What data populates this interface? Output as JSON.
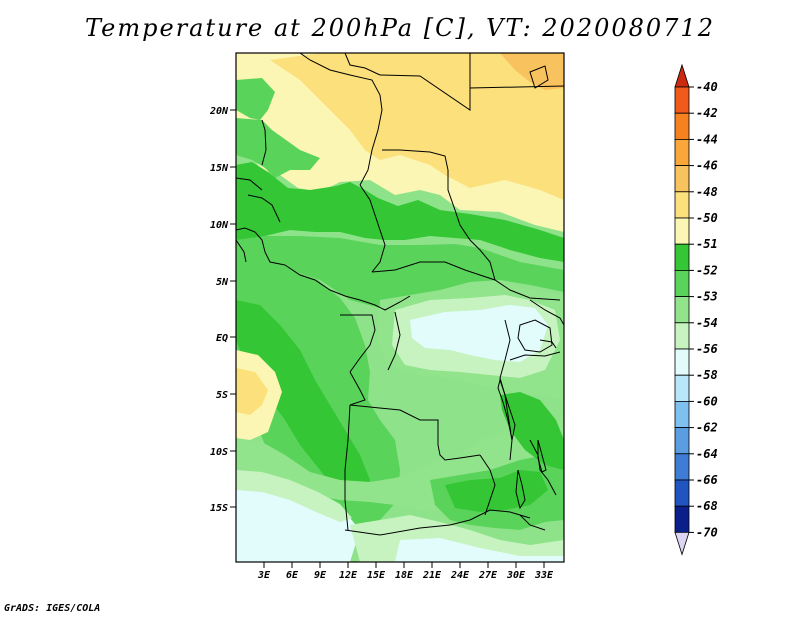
{
  "title": "Temperature at 200hPa [C], VT: 2020080712",
  "credit": "GrADS: IGES/COLA",
  "colors": {
    "palette": [
      "#ffffff",
      "#f8f6c0",
      "#fdeda0",
      "#fbdc80",
      "#f6c872",
      "#f3b262"
    ],
    "greens": [
      "#3cc83c",
      "#5ad25a",
      "#8ee38a",
      "#bff0b8"
    ],
    "cool": [
      "#e2fcfc",
      "#d0f4ff"
    ]
  },
  "map": {
    "lat_labels": [
      "20N",
      "15N",
      "10N",
      "5N",
      "EQ",
      "5S",
      "10S",
      "15S"
    ],
    "lon_labels": [
      "3E",
      "6E",
      "9E",
      "12E",
      "15E",
      "18E",
      "21E",
      "24E",
      "27E",
      "30E",
      "33E"
    ]
  },
  "legend": {
    "levels": [
      {
        "label": "-40",
        "color": "#e03418"
      },
      {
        "label": "-42",
        "color": "#f05a1a"
      },
      {
        "label": "-44",
        "color": "#f7801f"
      },
      {
        "label": "-46",
        "color": "#f9a63a"
      },
      {
        "label": "-48",
        "color": "#f8c25e"
      },
      {
        "label": "-50",
        "color": "#fbe07c"
      },
      {
        "label": "-51",
        "color": "#fbf6b4"
      },
      {
        "label": "-52",
        "color": "#34c634"
      },
      {
        "label": "-53",
        "color": "#5ad35a"
      },
      {
        "label": "-54",
        "color": "#92e48c"
      },
      {
        "label": "-56",
        "color": "#c6f3c0"
      },
      {
        "label": "-58",
        "color": "#e2fcfc"
      },
      {
        "label": "-60",
        "color": "#b8e6fb"
      },
      {
        "label": "-62",
        "color": "#7ec0ef"
      },
      {
        "label": "-64",
        "color": "#5a9de0"
      },
      {
        "label": "-66",
        "color": "#3e7cd6"
      },
      {
        "label": "-68",
        "color": "#2054c0"
      },
      {
        "label": "-70",
        "color": "#0a1f8a"
      }
    ],
    "top_cap_color": "#cc2a10",
    "bottom_cap_color": "#dcd6f4"
  }
}
